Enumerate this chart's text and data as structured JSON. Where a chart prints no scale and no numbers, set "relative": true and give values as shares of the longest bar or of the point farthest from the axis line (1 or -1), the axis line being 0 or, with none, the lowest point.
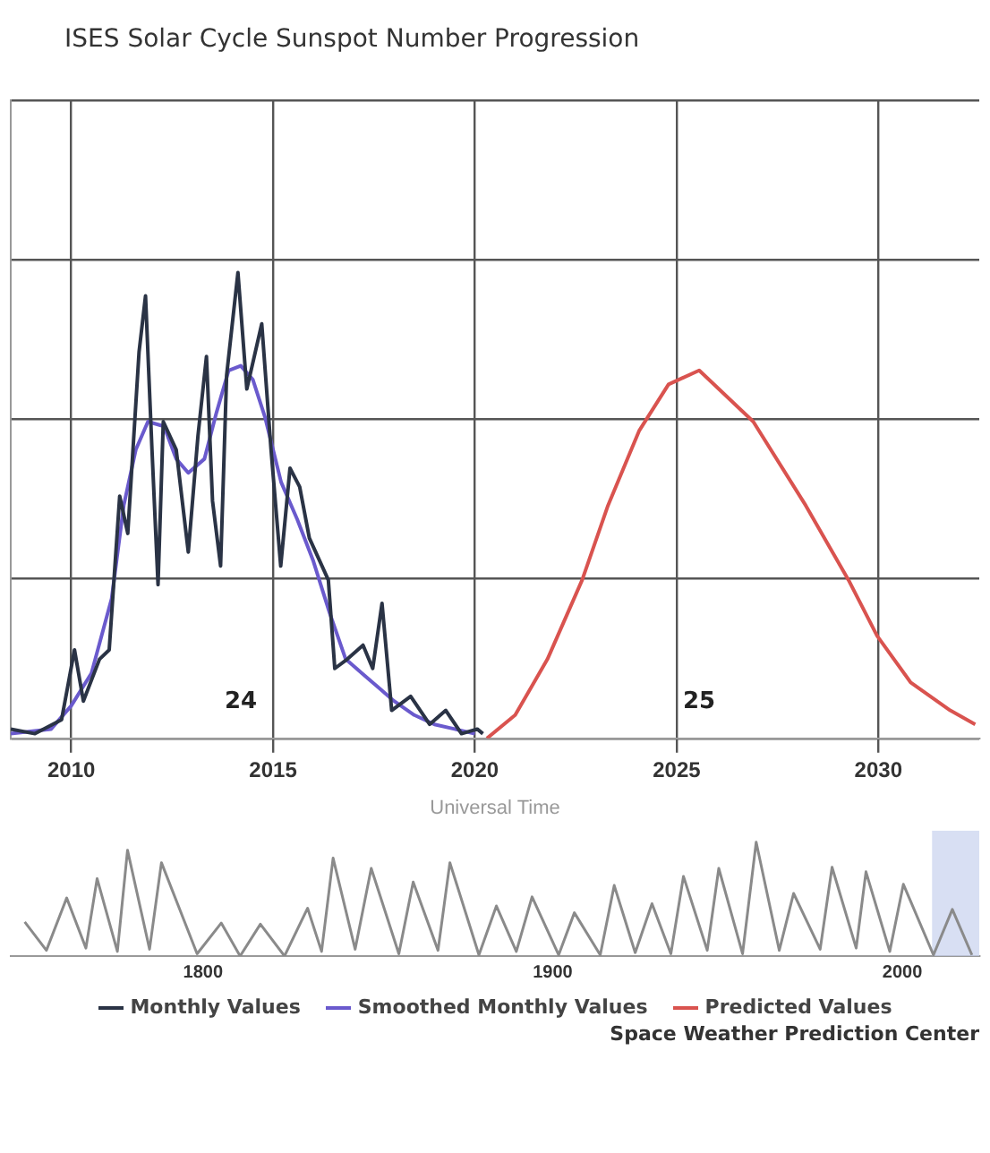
{
  "chart_data": [
    {
      "type": "line",
      "title": "ISES Solar Cycle Sunspot Number Progression",
      "xlabel": "Universal Time",
      "relative": true,
      "grid": true,
      "legend": "bottom",
      "xlim": [
        2008.5,
        2032.5
      ],
      "xticks": [
        2010,
        2015,
        2020,
        2025,
        2030
      ],
      "series": [
        {
          "name": "Monthly Values",
          "color": "#2a3345",
          "x": [
            2008.5,
            2009.1,
            2009.76,
            2010.08,
            2010.3,
            2010.7,
            2010.94,
            2011.2,
            2011.4,
            2011.68,
            2011.84,
            2012.0,
            2012.15,
            2012.28,
            2012.6,
            2012.9,
            2013.14,
            2013.35,
            2013.5,
            2013.7,
            2013.85,
            2014.13,
            2014.35,
            2014.72,
            2014.95,
            2015.19,
            2015.42,
            2015.66,
            2015.9,
            2016.37,
            2016.53,
            2016.84,
            2017.23,
            2017.47,
            2017.7,
            2017.94,
            2018.41,
            2018.88,
            2019.28,
            2019.67,
            2020.06,
            2020.2
          ],
          "values": [
            0.02,
            0.01,
            0.04,
            0.19,
            0.08,
            0.17,
            0.19,
            0.52,
            0.44,
            0.83,
            0.95,
            0.62,
            0.33,
            0.68,
            0.62,
            0.4,
            0.65,
            0.82,
            0.51,
            0.37,
            0.78,
            1.0,
            0.75,
            0.89,
            0.62,
            0.37,
            0.58,
            0.54,
            0.43,
            0.34,
            0.15,
            0.17,
            0.2,
            0.15,
            0.29,
            0.06,
            0.09,
            0.03,
            0.06,
            0.01,
            0.02,
            0.01
          ]
        },
        {
          "name": "Smoothed Monthly Values",
          "color": "#6a5acd",
          "x": [
            2008.5,
            2009.5,
            2010.0,
            2010.5,
            2011.0,
            2011.3,
            2011.6,
            2011.9,
            2012.3,
            2012.6,
            2012.9,
            2013.3,
            2013.6,
            2013.9,
            2014.2,
            2014.5,
            2014.8,
            2015.2,
            2015.6,
            2016.0,
            2016.4,
            2016.8,
            2017.2,
            2017.6,
            2018.0,
            2018.5,
            2019.0,
            2019.5,
            2020.0
          ],
          "values": [
            0.01,
            0.02,
            0.07,
            0.14,
            0.3,
            0.5,
            0.62,
            0.68,
            0.67,
            0.6,
            0.57,
            0.6,
            0.7,
            0.79,
            0.8,
            0.77,
            0.69,
            0.55,
            0.47,
            0.38,
            0.27,
            0.17,
            0.14,
            0.11,
            0.08,
            0.05,
            0.03,
            0.02,
            0.01
          ]
        },
        {
          "name": "Predicted Values",
          "color": "#d9534f",
          "x": [
            2020.3,
            2021.0,
            2021.8,
            2022.66,
            2023.3,
            2024.07,
            2024.8,
            2025.56,
            2026.9,
            2028.2,
            2029.26,
            2029.97,
            2030.8,
            2031.78,
            2032.4
          ],
          "values": [
            0.0,
            0.05,
            0.17,
            0.34,
            0.5,
            0.66,
            0.76,
            0.79,
            0.68,
            0.5,
            0.34,
            0.22,
            0.12,
            0.06,
            0.03
          ]
        }
      ],
      "annotations": [
        "24",
        "25",
        "Space Weather Prediction Center"
      ]
    },
    {
      "type": "line",
      "relative": true,
      "xlim": [
        1745,
        2022
      ],
      "xticks": [
        1800,
        1900,
        2000
      ],
      "bands": [
        {
          "axis": "x",
          "from": 2008.5,
          "to": 2022,
          "color": "#c8d2ee"
        }
      ],
      "series": [
        {
          "color": "#8a8a8a",
          "x": [
            1749,
            1755.2,
            1761,
            1766.5,
            1769.7,
            1775.5,
            1778.4,
            1784.7,
            1788.1,
            1798.3,
            1805.2,
            1810.6,
            1816.4,
            1823.3,
            1829.9,
            1833.9,
            1837.2,
            1843.5,
            1848.1,
            1856,
            1860.1,
            1867.2,
            1870.6,
            1878.9,
            1883.9,
            1889.6,
            1894.1,
            1901.7,
            1906.2,
            1913.6,
            1917.6,
            1923.6,
            1928.4,
            1933.8,
            1937.4,
            1944.2,
            1947.5,
            1954.3,
            1958.2,
            1964.8,
            1968.9,
            1976.5,
            1979.9,
            1986.8,
            1989.6,
            1996.4,
            2000.3,
            2008.9,
            2014.3,
            2019.9
          ],
          "values": [
            0.3,
            0.05,
            0.51,
            0.07,
            0.68,
            0.04,
            0.93,
            0.06,
            0.82,
            0.02,
            0.29,
            0,
            0.28,
            0,
            0.42,
            0.04,
            0.86,
            0.06,
            0.77,
            0.02,
            0.65,
            0.05,
            0.82,
            0.01,
            0.44,
            0.04,
            0.52,
            0.01,
            0.38,
            0.01,
            0.62,
            0.03,
            0.46,
            0.02,
            0.7,
            0.05,
            0.77,
            0.02,
            1,
            0.05,
            0.55,
            0.06,
            0.78,
            0.07,
            0.74,
            0.04,
            0.63,
            0.01,
            0.41,
            0.01
          ]
        }
      ]
    }
  ]
}
